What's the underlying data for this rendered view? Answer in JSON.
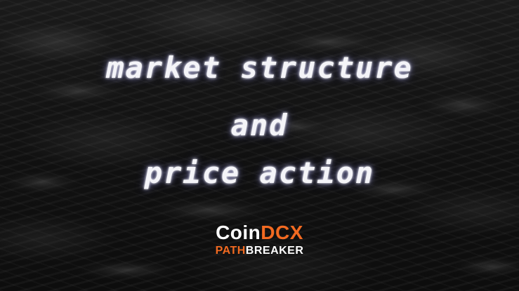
{
  "headline": {
    "line1": "market structure",
    "line2": "and",
    "line3": "price action"
  },
  "logo": {
    "coin": "Coin",
    "dcx": "DCX",
    "path": "PATH",
    "breaker": "BREAKER",
    "colors": {
      "accent": "#f26a21",
      "white": "#ffffff"
    }
  },
  "background": {
    "description_color": "#111111"
  }
}
